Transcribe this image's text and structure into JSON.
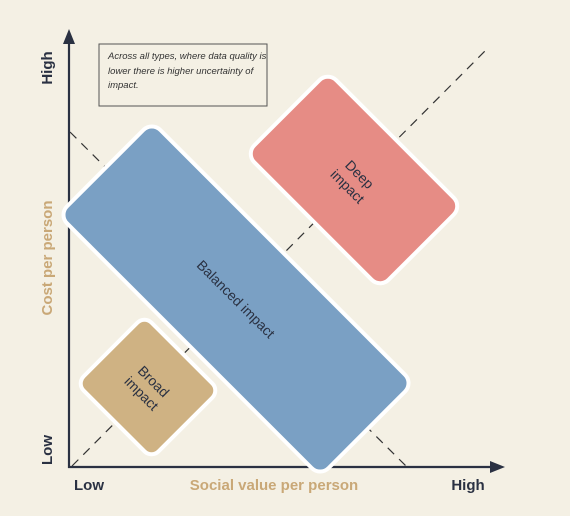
{
  "axes": {
    "y_high": "High",
    "y_low": "Low",
    "y_title": "Cost per person",
    "x_low": "Low",
    "x_high": "High",
    "x_title": "Social value per person"
  },
  "note": "Across all types, where data quality is lower there is higher uncertainty of impact.",
  "boxes": {
    "deep": {
      "line1": "Deep",
      "line2": "impact",
      "color": "#e68c85"
    },
    "balanced": {
      "label": "Balanced impact",
      "color": "#7aa0c4"
    },
    "broad": {
      "line1": "Broad",
      "line2": "impact",
      "color": "#cfb283"
    }
  },
  "colors": {
    "background": "#f4f0e4",
    "axis": "#2a3142",
    "axis_title": "#c9a877",
    "label_text": "#2a3142"
  }
}
